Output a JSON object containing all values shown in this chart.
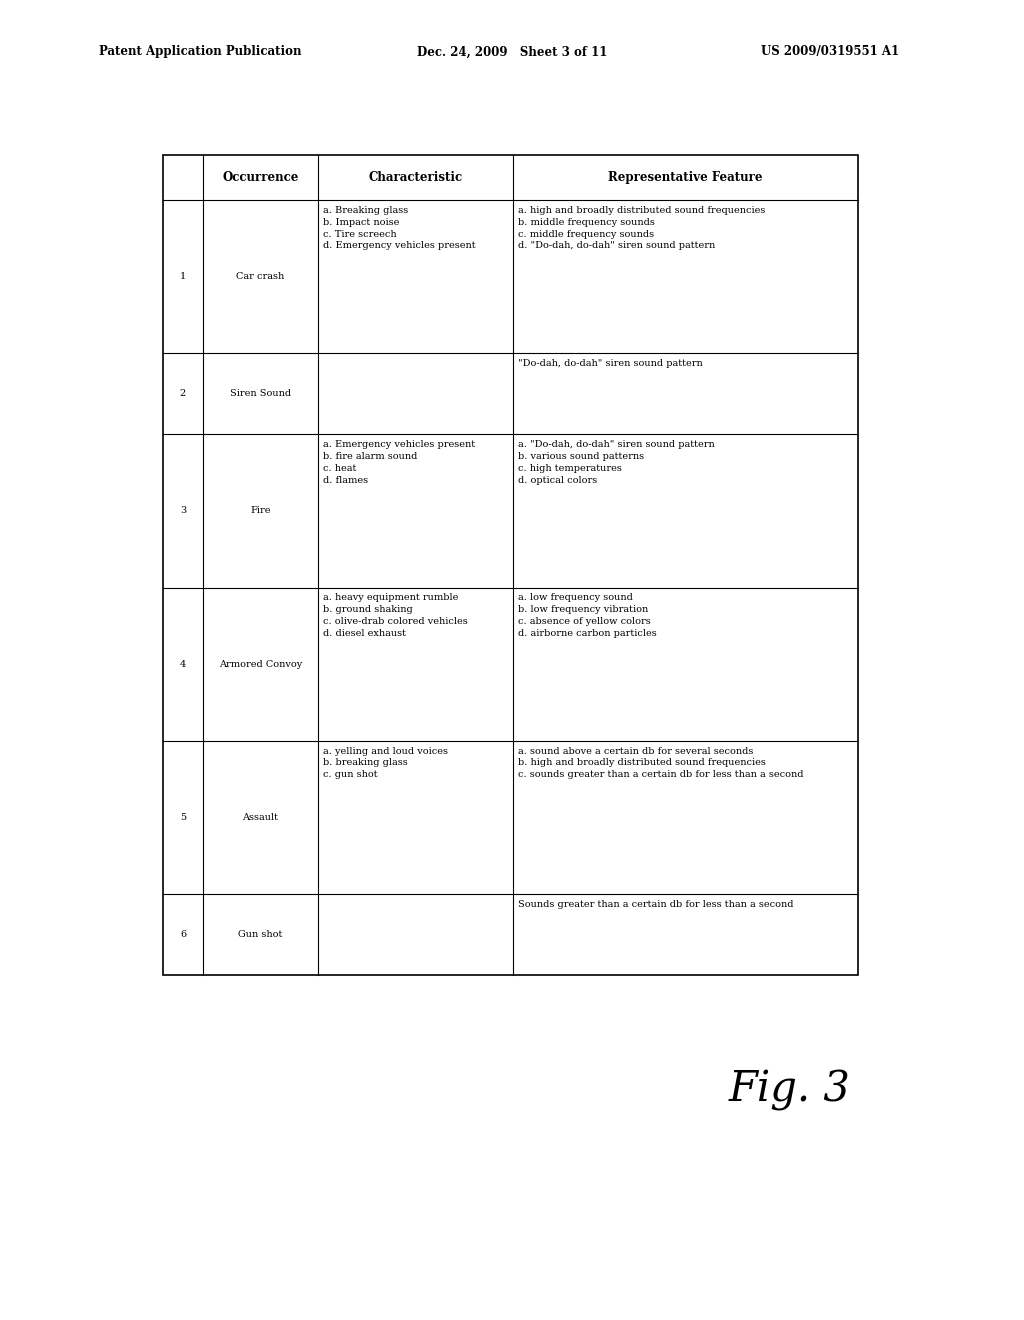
{
  "title_left": "Patent Application Publication",
  "title_center": "Dec. 24, 2009   Sheet 3 of 11",
  "title_right": "US 2009/0319551 A1",
  "fig_label": "Fig. 3",
  "headers": [
    "",
    "Occurrence",
    "Characteristic",
    "Representative Feature"
  ],
  "rows": [
    {
      "num": "1",
      "occurrence": "Car crash",
      "characteristic": "a. Breaking glass\nb. Impact noise\nc. Tire screech\nd. Emergency vehicles present",
      "feature": "a. high and broadly distributed sound frequencies\nb. middle frequency sounds\nc. middle frequency sounds\nd. \"Do-dah, do-dah\" siren sound pattern"
    },
    {
      "num": "2",
      "occurrence": "Siren Sound",
      "characteristic": "",
      "feature": "\"Do-dah, do-dah\" siren sound pattern"
    },
    {
      "num": "3",
      "occurrence": "Fire",
      "characteristic": "a. Emergency vehicles present\nb. fire alarm sound\nc. heat\nd. flames",
      "feature": "a. \"Do-dah, do-dah\" siren sound pattern\nb. various sound patterns\nc. high temperatures\nd. optical colors"
    },
    {
      "num": "4",
      "occurrence": "Armored Convoy",
      "characteristic": "a. heavy equipment rumble\nb. ground shaking\nc. olive-drab colored vehicles\nd. diesel exhaust",
      "feature": "a. low frequency sound\nb. low frequency vibration\nc. absence of yellow colors\nd. airborne carbon particles"
    },
    {
      "num": "5",
      "occurrence": "Assault",
      "characteristic": "a. yelling and loud voices\nb. breaking glass\nc. gun shot",
      "feature": "a. sound above a certain db for several seconds\nb. high and broadly distributed sound frequencies\nc. sounds greater than a certain db for less than a second"
    },
    {
      "num": "6",
      "occurrence": "Gun shot",
      "characteristic": "",
      "feature": "Sounds greater than a certain db for less than a second"
    }
  ],
  "bg_color": "#ffffff",
  "text_color": "#000000",
  "header_fontsize": 8.5,
  "cell_fontsize": 7.0,
  "title_fontsize": 8.5,
  "fig_fontsize": 30
}
